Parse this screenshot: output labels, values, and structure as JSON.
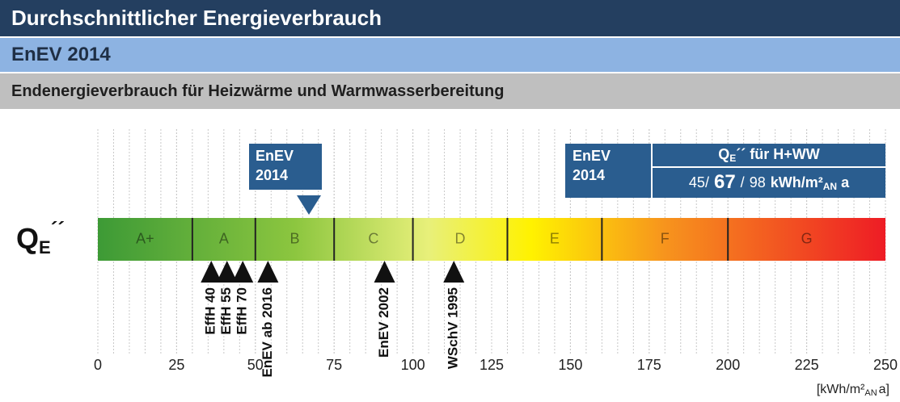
{
  "chart_data": {
    "type": "scale",
    "title": "Durchschnittlicher Energieverbrauch",
    "subtitle": "EnEV 2014",
    "description": "Endenergieverbrauch für Heizwärme und Warmwasserbereitung",
    "y_label": {
      "symbol": "Q",
      "sub": "E",
      "suffix": "´´"
    },
    "xlim": [
      0,
      250
    ],
    "xticks": [
      0,
      25,
      50,
      75,
      100,
      125,
      150,
      175,
      200,
      225,
      250
    ],
    "minor_grid_step": 5,
    "grid": true,
    "x_unit": [
      "[kWh/m²",
      "AN",
      "a]"
    ],
    "classes": [
      {
        "name": "A+",
        "start": 0,
        "end": 30
      },
      {
        "name": "A",
        "start": 30,
        "end": 50
      },
      {
        "name": "B",
        "start": 50,
        "end": 75
      },
      {
        "name": "C",
        "start": 75,
        "end": 100
      },
      {
        "name": "D",
        "start": 100,
        "end": 130
      },
      {
        "name": "E",
        "start": 130,
        "end": 160
      },
      {
        "name": "F",
        "start": 160,
        "end": 200
      },
      {
        "name": "G",
        "start": 200,
        "end": 250
      }
    ],
    "markers": [
      {
        "label": "EffH 40",
        "value": 36
      },
      {
        "label": "EffH 55",
        "value": 41
      },
      {
        "label": "EffH 70",
        "value": 46
      },
      {
        "label": "EnEV ab 2016",
        "value": 54
      },
      {
        "label": "EnEV 2002",
        "value": 91
      },
      {
        "label": "WSchV 1995",
        "value": 113
      }
    ],
    "current": {
      "label": [
        "EnEV",
        "2014"
      ],
      "value": 67
    },
    "info": {
      "label": [
        "EnEV",
        "2014"
      ],
      "heading": {
        "symbol": "Q",
        "sub": "E",
        "suffix": "´´ für H+WW"
      },
      "values": [
        45,
        67,
        98
      ],
      "separator": "/",
      "unit": [
        "kWh/m²",
        "AN",
        "a"
      ]
    }
  }
}
